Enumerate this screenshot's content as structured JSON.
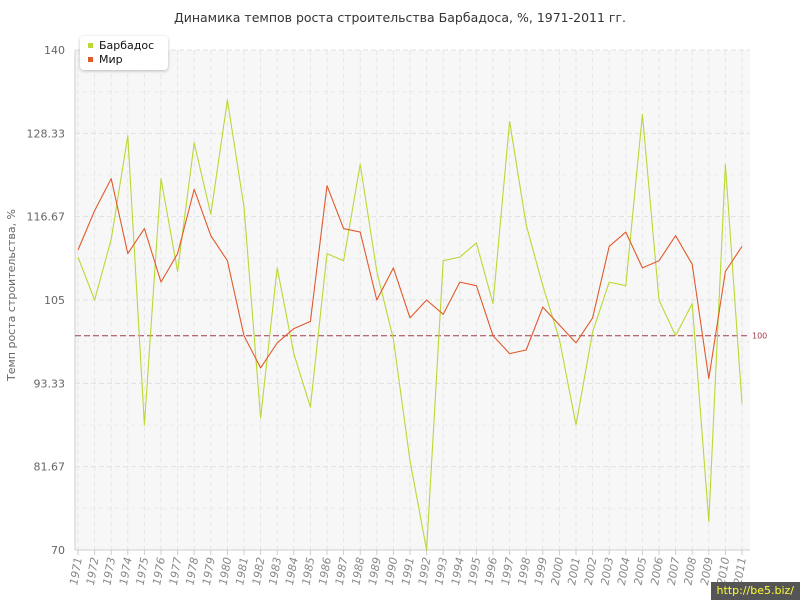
{
  "chart_data": {
    "type": "line",
    "title": "Динамика темпов роста строительства Барбадоса, %, 1971-2011 гг.",
    "xlabel": "",
    "ylabel": "Темп роста строительства, %",
    "x": [
      "1971",
      "1972",
      "1973",
      "1974",
      "1975",
      "1976",
      "1977",
      "1978",
      "1979",
      "1980",
      "1981",
      "1982",
      "1983",
      "1984",
      "1985",
      "1986",
      "1987",
      "1988",
      "1989",
      "1990",
      "1991",
      "1992",
      "1993",
      "1994",
      "1995",
      "1996",
      "1997",
      "1998",
      "1999",
      "2000",
      "2001",
      "2002",
      "2003",
      "2004",
      "2005",
      "2006",
      "2007",
      "2008",
      "2009",
      "2010",
      "2011"
    ],
    "ylim": [
      70,
      140
    ],
    "y_ticks": [
      "70",
      "81.67",
      "93.33",
      "105",
      "116.67",
      "128.33",
      "140"
    ],
    "grid": true,
    "legend_position": "top-left",
    "reference_line": {
      "value": 100,
      "label": "100",
      "color": "#a33a4a"
    },
    "series": [
      {
        "name": "Барбадос",
        "color": "#b8d935",
        "values": [
          111,
          105,
          113.5,
          128,
          87.5,
          122,
          109,
          127,
          117,
          133,
          118,
          88.5,
          109.5,
          97.5,
          90,
          111.5,
          110.5,
          124,
          109,
          99.5,
          82.5,
          70,
          110.5,
          111,
          113,
          104.5,
          130,
          115.5,
          107,
          99.5,
          87.5,
          100.5,
          107.5,
          107,
          131,
          105,
          100,
          104.5,
          74,
          124,
          90.5
        ]
      },
      {
        "name": "Мир",
        "color": "#e05a2b",
        "values": [
          112,
          117.5,
          122,
          111.5,
          115,
          107.5,
          111.5,
          120.5,
          114,
          110.5,
          100,
          95.5,
          99,
          101,
          102,
          121,
          115,
          114.5,
          105,
          109.5,
          102.5,
          105,
          103,
          107.5,
          107,
          100,
          97.5,
          98,
          104,
          101.5,
          99,
          102.5,
          112.5,
          114.5,
          109.5,
          110.5,
          114,
          110,
          94,
          109,
          112.5
        ]
      }
    ]
  },
  "watermark": "http://be5.biz/"
}
